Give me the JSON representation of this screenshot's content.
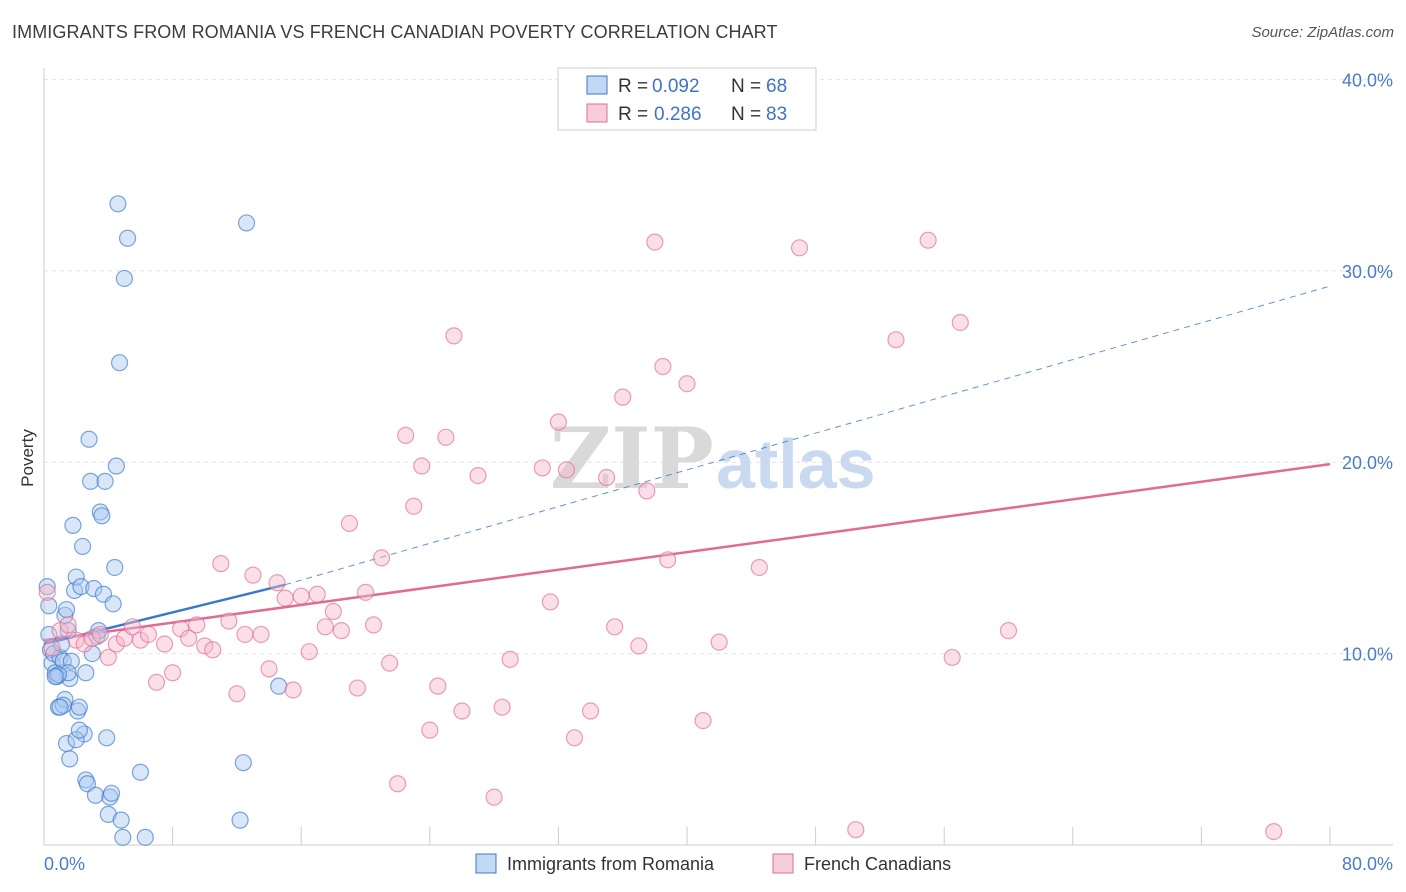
{
  "title": "IMMIGRANTS FROM ROMANIA VS FRENCH CANADIAN POVERTY CORRELATION CHART",
  "source": "Source: ZipAtlas.com",
  "watermark": {
    "zip": "ZIP",
    "atlas": "atlas"
  },
  "legend": {
    "rows": [
      {
        "r_label": "R = ",
        "r_value": "0.092",
        "n_label": "N = ",
        "n_value": "68",
        "color": "#a8c8f0"
      },
      {
        "r_label": "R = ",
        "r_value": "0.286",
        "n_label": "N = ",
        "n_value": "83",
        "color": "#f5b8cb"
      }
    ]
  },
  "chart_data": {
    "type": "scatter",
    "xlabel": "",
    "ylabel": "Poverty",
    "xlim": [
      0,
      80
    ],
    "ylim": [
      0,
      40
    ],
    "x_tick_labels": [
      "0.0%",
      "80.0%"
    ],
    "y_ticks": [
      10,
      20,
      30,
      40
    ],
    "y_tick_labels": [
      "10.0%",
      "20.0%",
      "30.0%",
      "40.0%"
    ],
    "grid": true,
    "legend_position": "top-center",
    "series": [
      {
        "name": "Immigrants from Romania",
        "color": "#3a78c9",
        "fill": "#a8c8f0",
        "trend": {
          "x0": 0,
          "y0": 10.5,
          "x1": 15,
          "y1": 13.6,
          "dash_to_x": 80,
          "dash_to_y": 29.2
        },
        "points": [
          [
            0.2,
            13.5
          ],
          [
            0.3,
            12.5
          ],
          [
            0.3,
            11.0
          ],
          [
            0.4,
            10.2
          ],
          [
            0.5,
            9.5
          ],
          [
            0.6,
            10.0
          ],
          [
            0.7,
            9.0
          ],
          [
            0.8,
            8.8
          ],
          [
            0.9,
            7.2
          ],
          [
            1.0,
            9.8
          ],
          [
            1.1,
            10.5
          ],
          [
            1.2,
            9.6
          ],
          [
            1.3,
            12.0
          ],
          [
            1.4,
            12.3
          ],
          [
            1.5,
            11.2
          ],
          [
            1.6,
            8.7
          ],
          [
            1.7,
            9.6
          ],
          [
            1.8,
            16.7
          ],
          [
            1.9,
            13.3
          ],
          [
            2.0,
            14.0
          ],
          [
            2.1,
            7.0
          ],
          [
            2.2,
            7.2
          ],
          [
            2.3,
            13.5
          ],
          [
            2.4,
            15.6
          ],
          [
            2.5,
            5.8
          ],
          [
            2.6,
            3.4
          ],
          [
            2.7,
            3.2
          ],
          [
            2.8,
            21.2
          ],
          [
            2.9,
            19.0
          ],
          [
            3.0,
            10.0
          ],
          [
            3.1,
            13.4
          ],
          [
            3.2,
            2.6
          ],
          [
            3.3,
            10.9
          ],
          [
            3.4,
            11.2
          ],
          [
            3.5,
            17.4
          ],
          [
            3.6,
            17.2
          ],
          [
            3.7,
            13.1
          ],
          [
            3.8,
            19.0
          ],
          [
            3.9,
            5.6
          ],
          [
            4.0,
            1.6
          ],
          [
            4.1,
            2.5
          ],
          [
            4.2,
            2.7
          ],
          [
            4.3,
            12.6
          ],
          [
            4.4,
            14.5
          ],
          [
            4.5,
            19.8
          ],
          [
            4.6,
            33.5
          ],
          [
            4.7,
            25.2
          ],
          [
            4.8,
            1.3
          ],
          [
            4.9,
            0.4
          ],
          [
            5.0,
            29.6
          ],
          [
            5.2,
            31.7
          ],
          [
            6.0,
            3.8
          ],
          [
            6.3,
            0.4
          ],
          [
            12.2,
            1.3
          ],
          [
            12.4,
            4.3
          ],
          [
            12.6,
            32.5
          ],
          [
            14.6,
            8.3
          ],
          [
            1.3,
            7.6
          ],
          [
            1.2,
            7.3
          ],
          [
            1.0,
            7.2
          ],
          [
            1.5,
            9.0
          ],
          [
            1.4,
            5.3
          ],
          [
            1.6,
            4.5
          ],
          [
            2.0,
            5.5
          ],
          [
            2.2,
            6.0
          ],
          [
            2.6,
            9.0
          ],
          [
            0.9,
            8.9
          ],
          [
            0.7,
            8.8
          ]
        ]
      },
      {
        "name": "French Canadians",
        "color": "#e06b93",
        "fill": "#f5b8cb",
        "trend": {
          "x0": 0,
          "y0": 10.7,
          "x1": 80,
          "y1": 19.9
        },
        "points": [
          [
            0.2,
            13.2
          ],
          [
            0.5,
            10.3
          ],
          [
            1.0,
            11.2
          ],
          [
            1.5,
            11.5
          ],
          [
            2.0,
            10.7
          ],
          [
            2.5,
            10.5
          ],
          [
            3.0,
            10.8
          ],
          [
            3.5,
            11.0
          ],
          [
            4.0,
            9.8
          ],
          [
            4.5,
            10.5
          ],
          [
            5.0,
            10.8
          ],
          [
            5.5,
            11.4
          ],
          [
            6.0,
            10.7
          ],
          [
            6.5,
            11.0
          ],
          [
            7.0,
            8.5
          ],
          [
            7.5,
            10.5
          ],
          [
            8.0,
            9.0
          ],
          [
            8.5,
            11.3
          ],
          [
            9.0,
            10.8
          ],
          [
            9.5,
            11.5
          ],
          [
            10.0,
            10.4
          ],
          [
            10.5,
            10.2
          ],
          [
            11.0,
            14.7
          ],
          [
            11.5,
            11.7
          ],
          [
            12.0,
            7.9
          ],
          [
            12.5,
            11.0
          ],
          [
            13.0,
            14.1
          ],
          [
            13.5,
            11.0
          ],
          [
            14.0,
            9.2
          ],
          [
            14.5,
            13.7
          ],
          [
            15.0,
            12.9
          ],
          [
            15.5,
            8.1
          ],
          [
            16.0,
            13.0
          ],
          [
            16.5,
            10.1
          ],
          [
            17.0,
            13.1
          ],
          [
            17.5,
            11.4
          ],
          [
            18.0,
            12.2
          ],
          [
            18.5,
            11.2
          ],
          [
            19.0,
            16.8
          ],
          [
            19.5,
            8.2
          ],
          [
            20.0,
            13.2
          ],
          [
            20.5,
            11.5
          ],
          [
            21.0,
            15.0
          ],
          [
            21.5,
            9.5
          ],
          [
            22.0,
            3.2
          ],
          [
            22.5,
            21.4
          ],
          [
            23.0,
            17.7
          ],
          [
            23.5,
            19.8
          ],
          [
            24.0,
            6.0
          ],
          [
            24.5,
            8.3
          ],
          [
            25.0,
            21.3
          ],
          [
            25.5,
            26.6
          ],
          [
            26.0,
            7.0
          ],
          [
            27.0,
            19.3
          ],
          [
            28.0,
            2.5
          ],
          [
            28.5,
            7.2
          ],
          [
            29.0,
            9.7
          ],
          [
            31.0,
            19.7
          ],
          [
            31.5,
            12.7
          ],
          [
            32.0,
            22.1
          ],
          [
            32.5,
            19.6
          ],
          [
            33.0,
            5.6
          ],
          [
            34.0,
            7.0
          ],
          [
            35.0,
            19.2
          ],
          [
            35.5,
            11.4
          ],
          [
            36.0,
            23.4
          ],
          [
            37.0,
            10.4
          ],
          [
            37.5,
            18.5
          ],
          [
            38.0,
            31.5
          ],
          [
            38.5,
            25.0
          ],
          [
            38.8,
            14.9
          ],
          [
            40.0,
            24.1
          ],
          [
            41.0,
            6.5
          ],
          [
            42.0,
            10.6
          ],
          [
            44.5,
            14.5
          ],
          [
            47.0,
            31.2
          ],
          [
            50.5,
            0.8
          ],
          [
            53.0,
            26.4
          ],
          [
            55.0,
            31.6
          ],
          [
            56.5,
            9.8
          ],
          [
            57.0,
            27.3
          ],
          [
            60.0,
            11.2
          ],
          [
            76.5,
            0.7
          ]
        ]
      }
    ]
  }
}
